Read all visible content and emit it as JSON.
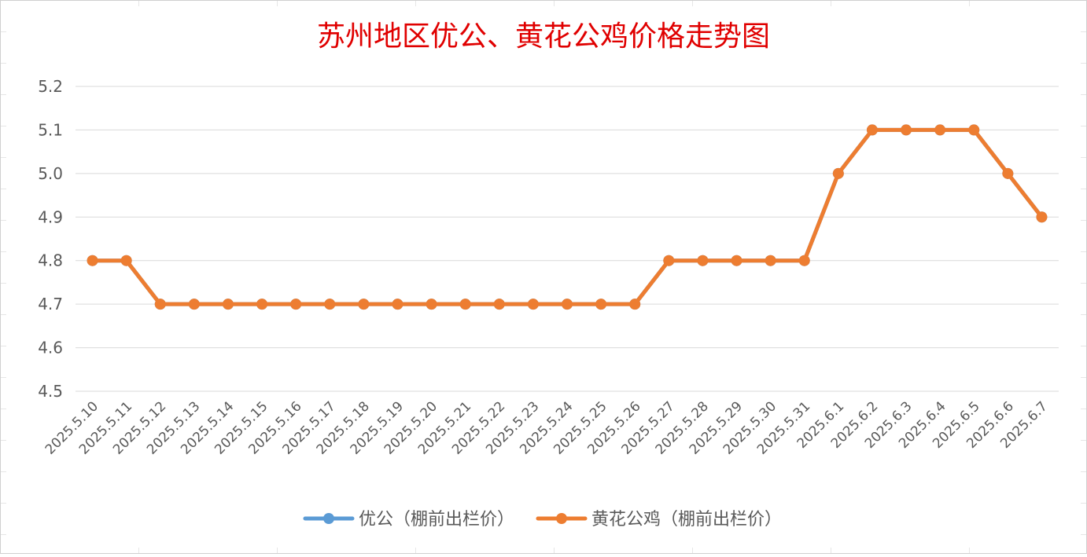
{
  "chart_data": {
    "type": "line",
    "title": "苏州地区优公、黄花公鸡价格走势图",
    "xlabel": "",
    "ylabel": "",
    "ylim": [
      4.5,
      5.2
    ],
    "yticks": [
      "4.5",
      "4.6",
      "4.7",
      "4.8",
      "4.9",
      "5.0",
      "5.1",
      "5.2"
    ],
    "grid": true,
    "legend_position": "bottom",
    "categories": [
      "2025.5.10",
      "2025.5.11",
      "2025.5.12",
      "2025.5.13",
      "2025.5.14",
      "2025.5.15",
      "2025.5.16",
      "2025.5.17",
      "2025.5.18",
      "2025.5.19",
      "2025.5.20",
      "2025.5.21",
      "2025.5.22",
      "2025.5.23",
      "2025.5.24",
      "2025.5.25",
      "2025.5.26",
      "2025.5.27",
      "2025.5.28",
      "2025.5.29",
      "2025.5.30",
      "2025.5.31",
      "2025.6.1",
      "2025.6.2",
      "2025.6.3",
      "2025.6.4",
      "2025.6.5",
      "2025.6.6",
      "2025.6.7"
    ],
    "series": [
      {
        "name": "优公（棚前出栏价）",
        "color": "#5b9bd5",
        "values": [
          4.8,
          4.8,
          4.7,
          4.7,
          4.7,
          4.7,
          4.7,
          4.7,
          4.7,
          4.7,
          4.7,
          4.7,
          4.7,
          4.7,
          4.7,
          4.7,
          4.7,
          4.8,
          4.8,
          4.8,
          4.8,
          4.8,
          5.0,
          5.1,
          5.1,
          5.1,
          5.1,
          5.0,
          4.9
        ]
      },
      {
        "name": "黄花公鸡（棚前出栏价）",
        "color": "#ed7d31",
        "values": [
          4.8,
          4.8,
          4.7,
          4.7,
          4.7,
          4.7,
          4.7,
          4.7,
          4.7,
          4.7,
          4.7,
          4.7,
          4.7,
          4.7,
          4.7,
          4.7,
          4.7,
          4.8,
          4.8,
          4.8,
          4.8,
          4.8,
          5.0,
          5.1,
          5.1,
          5.1,
          5.1,
          5.0,
          4.9
        ]
      }
    ]
  }
}
